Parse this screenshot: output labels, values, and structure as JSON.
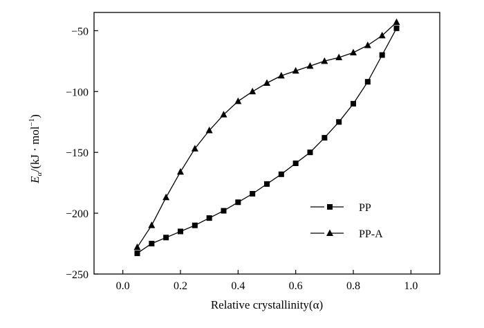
{
  "chart_data": {
    "type": "line",
    "title": "",
    "xlabel": "Relative crystallinity(α)",
    "ylabel": "E_α/(kJ · mol⁻¹)",
    "ylabel_parts": {
      "main": "E",
      "sub": "α",
      "rest": "/(kJ · mol",
      "sup": "−1",
      "close": ")"
    },
    "xlim": [
      -0.1,
      1.1
    ],
    "ylim": [
      -250,
      -35
    ],
    "xticks": [
      0.0,
      0.2,
      0.4,
      0.6,
      0.8,
      1.0
    ],
    "xtick_labels": [
      "0.0",
      "0.2",
      "0.4",
      "0.6",
      "0.8",
      "1.0"
    ],
    "yticks": [
      -50,
      -100,
      -150,
      -200,
      -250
    ],
    "ytick_labels": [
      "−50",
      "−100",
      "−150",
      "−200",
      "−250"
    ],
    "grid": false,
    "legend_position": "lower-right",
    "x": [
      0.05,
      0.1,
      0.15,
      0.2,
      0.25,
      0.3,
      0.35,
      0.4,
      0.45,
      0.5,
      0.55,
      0.6,
      0.65,
      0.7,
      0.75,
      0.8,
      0.85,
      0.9,
      0.95
    ],
    "series": [
      {
        "name": "PP",
        "marker": "square",
        "color": "#000000",
        "values": [
          -233,
          -225,
          -220,
          -215,
          -210,
          -204,
          -198,
          -191,
          -184,
          -176,
          -168,
          -159,
          -150,
          -138,
          -125,
          -110,
          -92,
          -70,
          -48
        ]
      },
      {
        "name": "PP-A",
        "marker": "triangle",
        "color": "#000000",
        "values": [
          -228,
          -210,
          -187,
          -166,
          -147,
          -132,
          -119,
          -108,
          -100,
          -93,
          -87,
          -83,
          -79,
          -75,
          -72,
          -68,
          -62,
          -54,
          -43
        ]
      }
    ]
  }
}
